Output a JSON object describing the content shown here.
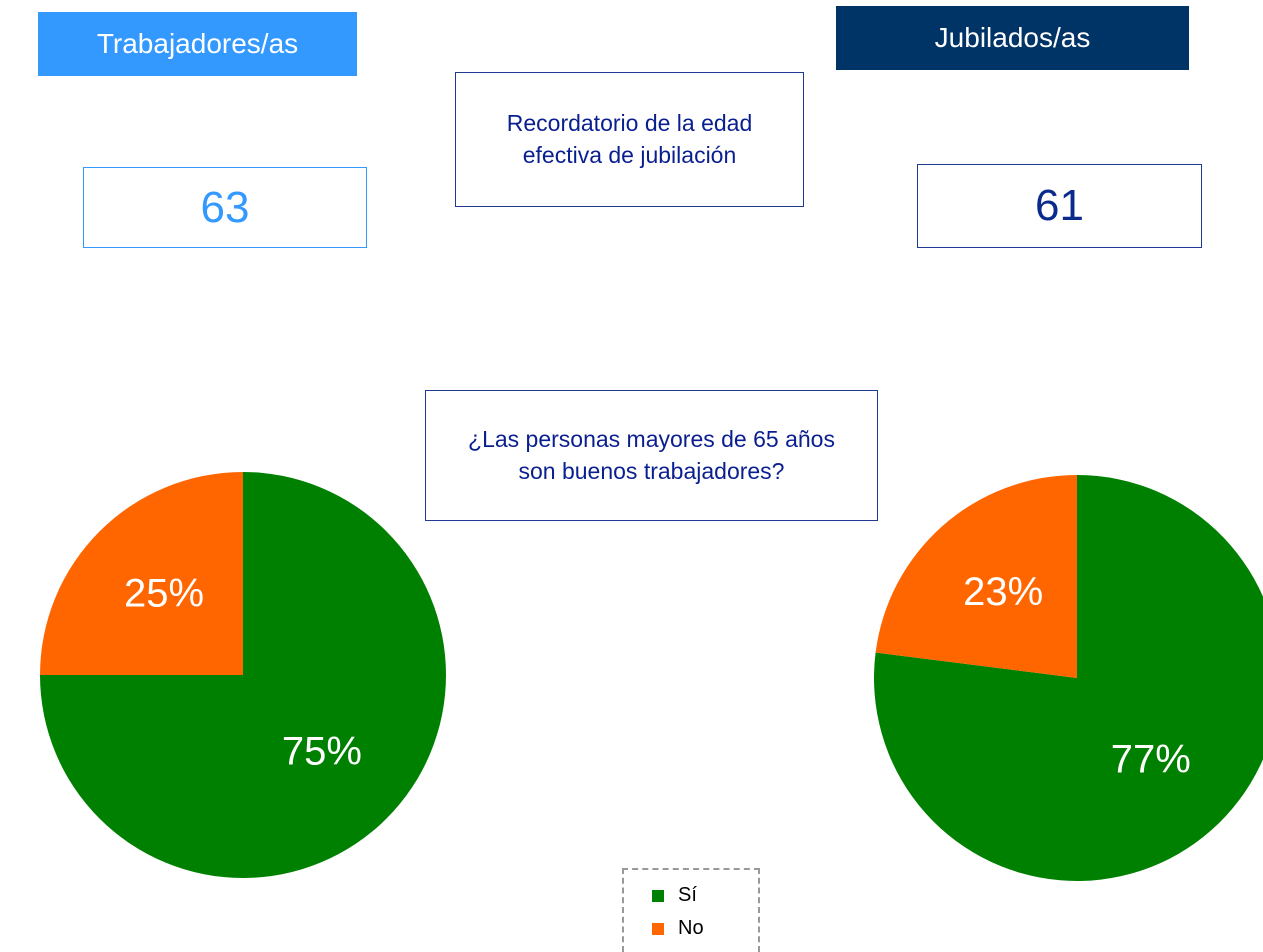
{
  "header": {
    "left_label": "Trabajadores/as",
    "right_label": "Jubilados/as",
    "reminder": "Recordatorio de la edad efectiva de jubilación",
    "left_age": "63",
    "right_age": "61",
    "question": "¿Las personas mayores de 65 años son buenos trabajadores?"
  },
  "chart_data": [
    {
      "type": "pie",
      "categories": [
        "Sí",
        "No"
      ],
      "values": [
        75,
        25
      ],
      "value_labels": [
        "75%",
        "25%"
      ],
      "colors": [
        "#008000",
        "#ff6600"
      ]
    },
    {
      "type": "pie",
      "categories": [
        "Sí",
        "No"
      ],
      "values": [
        77,
        23
      ],
      "value_labels": [
        "77%",
        "23%"
      ],
      "colors": [
        "#008000",
        "#ff6600"
      ]
    }
  ]
}
